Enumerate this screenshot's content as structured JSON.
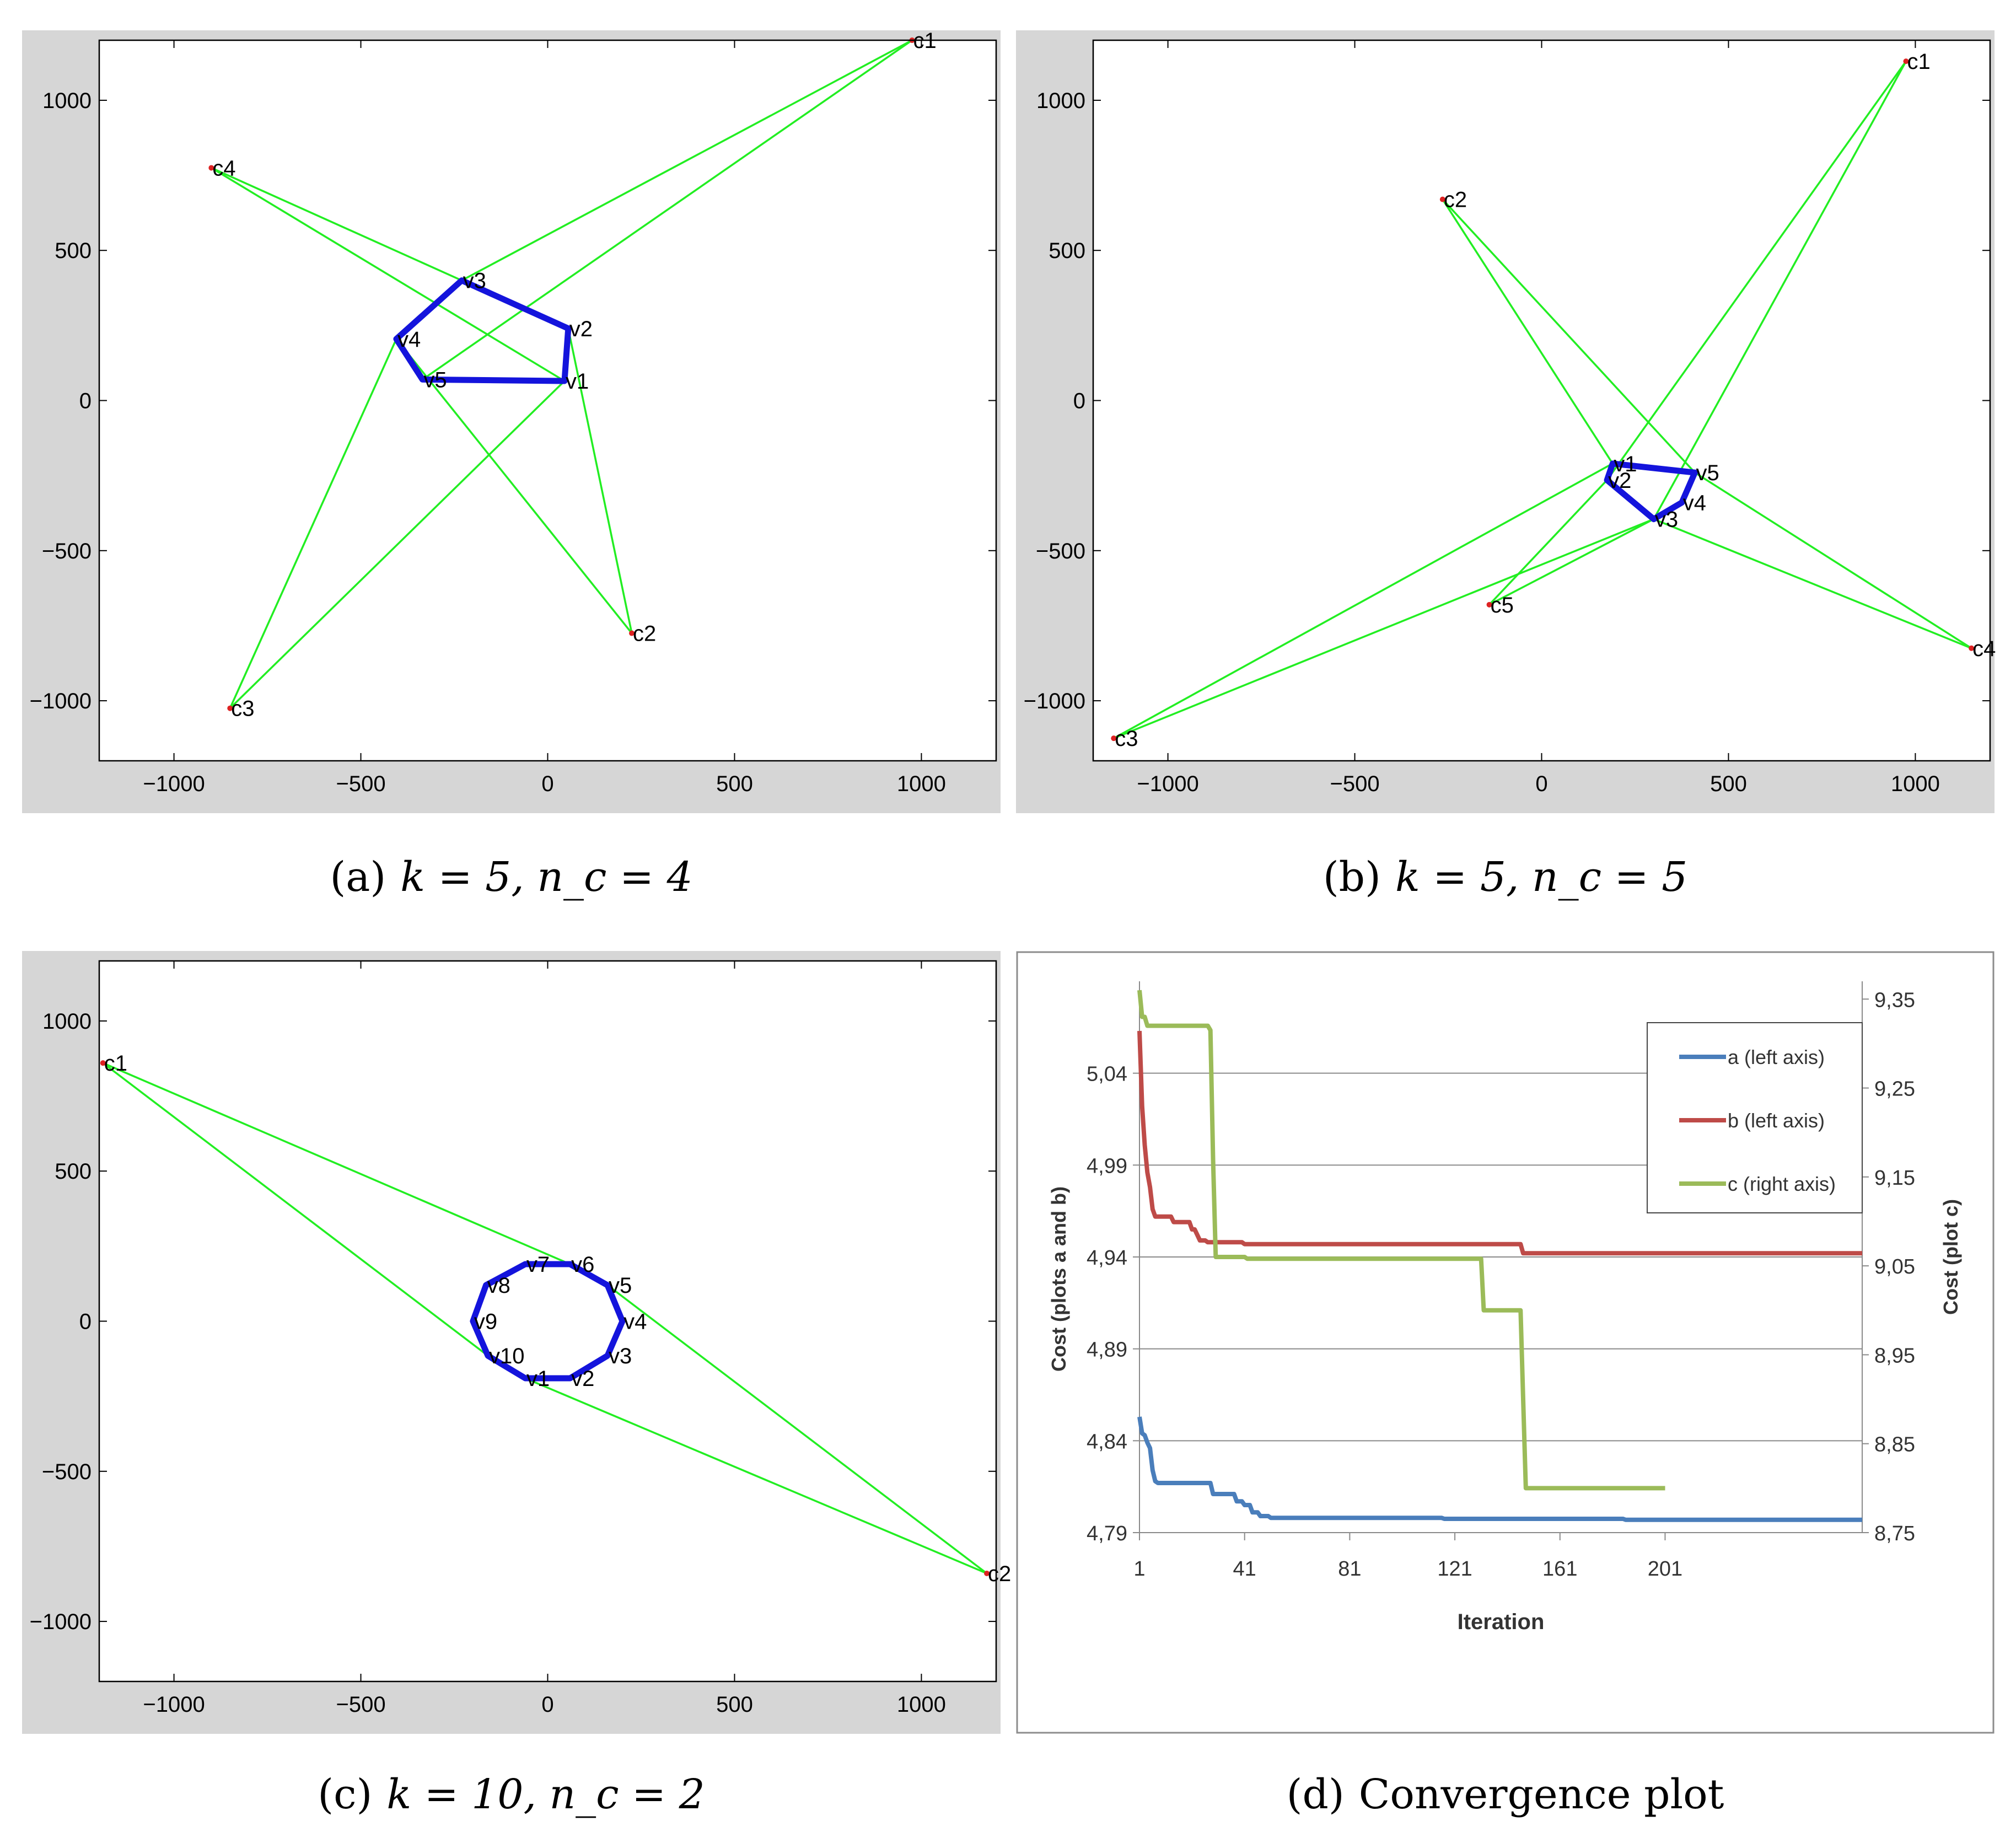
{
  "chart_data": [
    {
      "id": "a",
      "type": "scatter",
      "caption": {
        "label": "(a)",
        "text": "k = 5, n_c = 4"
      },
      "xlim": [
        -1200,
        1200
      ],
      "ylim": [
        -1200,
        1200
      ],
      "xticks": [
        -1000,
        -500,
        0,
        500,
        1000
      ],
      "yticks": [
        -1000,
        -500,
        0,
        500,
        1000
      ],
      "xtick_labels": [
        "−1000",
        "−500",
        "0",
        "500",
        "1000"
      ],
      "ytick_labels": [
        "−1000",
        "−500",
        "0",
        "500",
        "1000"
      ],
      "colors": {
        "polygon": "#1414dc",
        "links": "#22ee22",
        "points": "#dd2222",
        "frame_bg": "#d6d6d6"
      },
      "vertices": [
        {
          "label": "v1",
          "x": 45,
          "y": 65
        },
        {
          "label": "v2",
          "x": 55,
          "y": 240
        },
        {
          "label": "v3",
          "x": -230,
          "y": 400
        },
        {
          "label": "v4",
          "x": -405,
          "y": 205
        },
        {
          "label": "v5",
          "x": -335,
          "y": 70
        }
      ],
      "centers": [
        {
          "label": "c1",
          "x": 975,
          "y": 1200,
          "links": [
            "v3",
            "v5"
          ]
        },
        {
          "label": "c2",
          "x": 225,
          "y": -775,
          "links": [
            "v2",
            "v4"
          ]
        },
        {
          "label": "c3",
          "x": -850,
          "y": -1025,
          "links": [
            "v4",
            "v1"
          ]
        },
        {
          "label": "c4",
          "x": -900,
          "y": 775,
          "links": [
            "v3",
            "v1"
          ]
        }
      ]
    },
    {
      "id": "b",
      "type": "scatter",
      "caption": {
        "label": "(b)",
        "text": "k = 5, n_c = 5"
      },
      "xlim": [
        -1200,
        1200
      ],
      "ylim": [
        -1200,
        1200
      ],
      "xticks": [
        -1000,
        -500,
        0,
        500,
        1000
      ],
      "yticks": [
        -1000,
        -500,
        0,
        500,
        1000
      ],
      "xtick_labels": [
        "−1000",
        "−500",
        "0",
        "500",
        "1000"
      ],
      "ytick_labels": [
        "−1000",
        "−500",
        "0",
        "500",
        "1000"
      ],
      "colors": {
        "polygon": "#1414dc",
        "links": "#22ee22",
        "points": "#dd2222",
        "frame_bg": "#d6d6d6"
      },
      "vertices": [
        {
          "label": "v1",
          "x": 190,
          "y": -210
        },
        {
          "label": "v2",
          "x": 175,
          "y": -265
        },
        {
          "label": "v3",
          "x": 300,
          "y": -395
        },
        {
          "label": "v4",
          "x": 375,
          "y": -340
        },
        {
          "label": "v5",
          "x": 410,
          "y": -240
        }
      ],
      "centers": [
        {
          "label": "c1",
          "x": 975,
          "y": 1130,
          "links": [
            "v3",
            "v2"
          ]
        },
        {
          "label": "c2",
          "x": -265,
          "y": 670,
          "links": [
            "v1",
            "v5"
          ]
        },
        {
          "label": "c3",
          "x": -1145,
          "y": -1125,
          "links": [
            "v1",
            "v3"
          ]
        },
        {
          "label": "c4",
          "x": 1150,
          "y": -825,
          "links": [
            "v5",
            "v3"
          ]
        },
        {
          "label": "c5",
          "x": -140,
          "y": -680,
          "links": [
            "v2",
            "v3"
          ]
        }
      ]
    },
    {
      "id": "c",
      "type": "scatter",
      "caption": {
        "label": "(c)",
        "text": "k = 10, n_c = 2"
      },
      "xlim": [
        -1200,
        1200
      ],
      "ylim": [
        -1200,
        1200
      ],
      "xticks": [
        -1000,
        -500,
        0,
        500,
        1000
      ],
      "yticks": [
        -1000,
        -500,
        0,
        500,
        1000
      ],
      "xtick_labels": [
        "−1000",
        "−500",
        "0",
        "500",
        "1000"
      ],
      "ytick_labels": [
        "−1000",
        "−500",
        "0",
        "500",
        "1000"
      ],
      "colors": {
        "polygon": "#1414dc",
        "links": "#22ee22",
        "points": "#dd2222",
        "frame_bg": "#d6d6d6"
      },
      "vertices": [
        {
          "label": "v1",
          "x": -60,
          "y": -190
        },
        {
          "label": "v2",
          "x": 60,
          "y": -190
        },
        {
          "label": "v3",
          "x": 160,
          "y": -115
        },
        {
          "label": "v4",
          "x": 200,
          "y": 0
        },
        {
          "label": "v5",
          "x": 160,
          "y": 120
        },
        {
          "label": "v6",
          "x": 60,
          "y": 190
        },
        {
          "label": "v7",
          "x": -60,
          "y": 190
        },
        {
          "label": "v8",
          "x": -165,
          "y": 120
        },
        {
          "label": "v9",
          "x": -200,
          "y": 0
        },
        {
          "label": "v10",
          "x": -160,
          "y": -115
        }
      ],
      "centers": [
        {
          "label": "c1",
          "x": -1190,
          "y": 860,
          "links": [
            "v6",
            "v10"
          ]
        },
        {
          "label": "c2",
          "x": 1175,
          "y": -840,
          "links": [
            "v5",
            "v1"
          ]
        }
      ]
    },
    {
      "id": "d",
      "type": "line",
      "caption": {
        "label": "(d)",
        "text": "Convergence plot"
      },
      "xlabel": "Iteration",
      "ylabel_left": "Cost (plots a and b)",
      "ylabel_right": "Cost (plot c)",
      "xlim": [
        1,
        276
      ],
      "xticks": [
        1,
        41,
        81,
        121,
        161,
        201
      ],
      "xtick_labels": [
        "1",
        "41",
        "81",
        "121",
        "161",
        "201"
      ],
      "ylim_left": [
        4.79,
        5.09
      ],
      "yticks_left": [
        4.79,
        4.84,
        4.89,
        4.94,
        4.99,
        5.04
      ],
      "ytick_labels_left": [
        "4,79",
        "4,84",
        "4,89",
        "4,94",
        "4,99",
        "5,04"
      ],
      "ylim_right": [
        8.75,
        9.37
      ],
      "yticks_right": [
        8.75,
        8.85,
        8.95,
        9.05,
        9.15,
        9.25,
        9.35
      ],
      "ytick_labels_right": [
        "8,75",
        "8,85",
        "8,95",
        "9,05",
        "9,15",
        "9,25",
        "9,35"
      ],
      "legend_position": "top-right",
      "series": [
        {
          "name": "a (left axis)",
          "axis": "left",
          "color": "#4a7ebb",
          "x": [
            1,
            2,
            3,
            4,
            5,
            6,
            7,
            8,
            28,
            29,
            37,
            38,
            40,
            41,
            43,
            44,
            46,
            47,
            50,
            51,
            116,
            117,
            185,
            186,
            276
          ],
          "y": [
            4.853,
            4.844,
            4.843,
            4.839,
            4.836,
            4.824,
            4.818,
            4.817,
            4.817,
            4.811,
            4.811,
            4.807,
            4.807,
            4.805,
            4.805,
            4.801,
            4.801,
            4.799,
            4.799,
            4.798,
            4.798,
            4.7975,
            4.7975,
            4.797,
            4.797
          ]
        },
        {
          "name": "b (left axis)",
          "axis": "left",
          "color": "#be4b48",
          "x": [
            1,
            2,
            3,
            4,
            5,
            6,
            7,
            8,
            13,
            14,
            20,
            21,
            22,
            23,
            24,
            26,
            27,
            40,
            41,
            146,
            147,
            276
          ],
          "y": [
            5.063,
            5.022,
            5.001,
            4.986,
            4.978,
            4.966,
            4.962,
            4.962,
            4.962,
            4.959,
            4.959,
            4.955,
            4.955,
            4.952,
            4.949,
            4.949,
            4.948,
            4.948,
            4.947,
            4.947,
            4.942,
            4.942
          ]
        },
        {
          "name": "c (right axis)",
          "axis": "right",
          "color": "#9bbb59",
          "x": [
            1,
            2,
            3,
            4,
            5,
            27,
            28,
            29,
            30,
            41,
            42,
            131,
            132,
            146,
            147,
            148,
            201
          ],
          "y": [
            9.36,
            9.33,
            9.33,
            9.32,
            9.32,
            9.32,
            9.315,
            9.17,
            9.06,
            9.06,
            9.058,
            9.058,
            9.0,
            9.0,
            8.9,
            8.8,
            8.8
          ]
        }
      ]
    }
  ]
}
